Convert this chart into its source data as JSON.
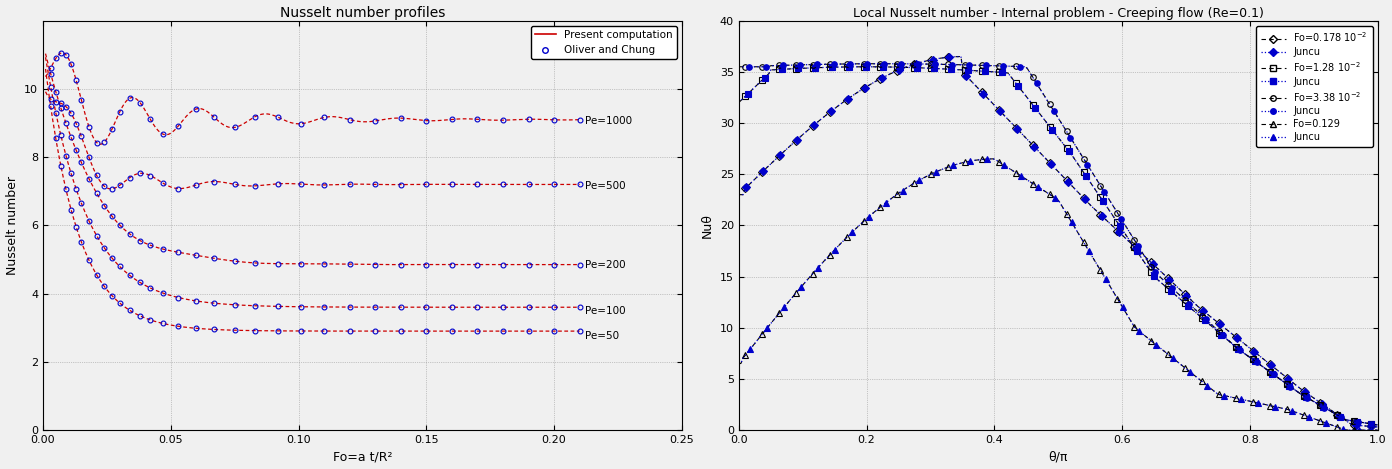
{
  "fig_width": 13.92,
  "fig_height": 4.69,
  "fig_dpi": 100,
  "left_title": "Nusselt number profiles",
  "left_xlabel": "Fo=a t/R²",
  "left_ylabel": "Nusselt number",
  "left_xlim": [
    0,
    0.25
  ],
  "left_ylim": [
    0,
    12
  ],
  "left_xticks": [
    0,
    0.05,
    0.1,
    0.15,
    0.2,
    0.25
  ],
  "left_yticks": [
    0,
    2,
    4,
    6,
    8,
    10
  ],
  "right_title": "Local Nusselt number - Internal problem - Creeping flow (Re=0.1)",
  "right_xlabel": "θ/π",
  "right_ylabel": "Nuθ",
  "right_xlim": [
    0,
    1.0
  ],
  "right_ylim": [
    0,
    40
  ],
  "right_xticks": [
    0,
    0.2,
    0.4,
    0.6,
    0.8,
    1.0
  ],
  "right_yticks": [
    0,
    5,
    10,
    15,
    20,
    25,
    30,
    35,
    40
  ],
  "color_red": "#cc0000",
  "color_blue": "#0000cc",
  "color_black": "#111111",
  "grid_color": "#999999",
  "bg_color": "#f0f0f0"
}
